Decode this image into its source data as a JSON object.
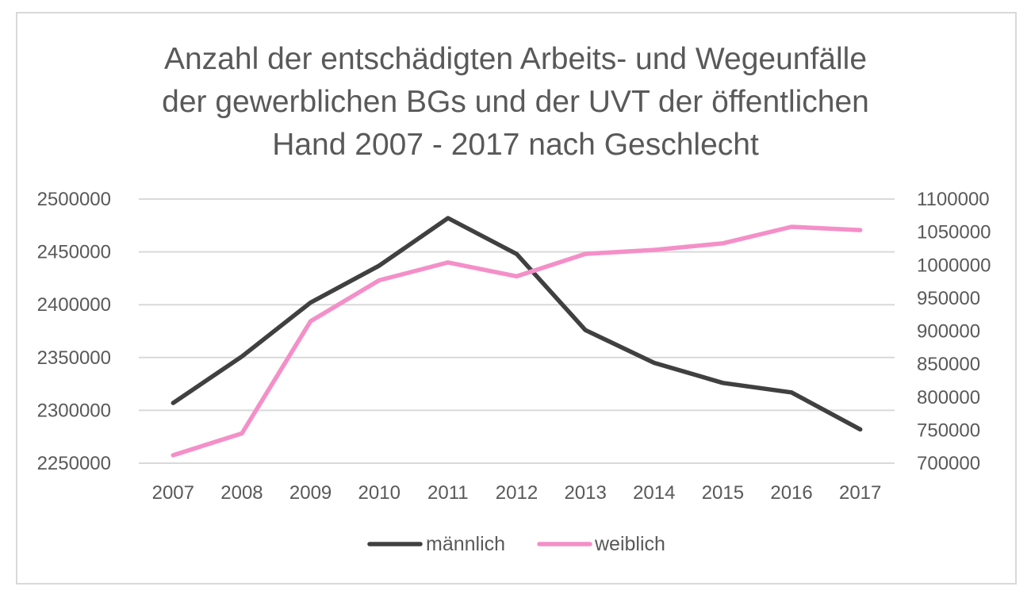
{
  "chart_data": {
    "type": "line",
    "title": [
      "Anzahl der entschädigten Arbeits- und Wegeunfälle",
      "der gewerblichen BGs und der UVT der öffentlichen",
      "Hand 2007 - 2017 nach Geschlecht"
    ],
    "categories": [
      "2007",
      "2008",
      "2009",
      "2010",
      "2011",
      "2012",
      "2013",
      "2014",
      "2015",
      "2016",
      "2017"
    ],
    "y_left": {
      "range": [
        2250000,
        2500000
      ],
      "ticks": [
        "2500000",
        "2450000",
        "2400000",
        "2350000",
        "2300000",
        "2250000"
      ]
    },
    "y_right": {
      "range": [
        700000,
        1100000
      ],
      "ticks": [
        "1100000",
        "1050000",
        "1000000",
        "950000",
        "900000",
        "850000",
        "800000",
        "750000",
        "700000"
      ]
    },
    "series": [
      {
        "name": "männlich",
        "axis": "left",
        "color": "#404040",
        "values": [
          2307000,
          2351000,
          2402000,
          2437000,
          2482000,
          2448000,
          2376000,
          2345000,
          2326000,
          2317000,
          2282000
        ]
      },
      {
        "name": "weiblich",
        "axis": "right",
        "color": "#f48fc8",
        "values": [
          712000,
          745000,
          915000,
          977000,
          1004000,
          983000,
          1017000,
          1023000,
          1033000,
          1058000,
          1053000
        ]
      }
    ],
    "grid": true,
    "legend_position": "bottom"
  }
}
